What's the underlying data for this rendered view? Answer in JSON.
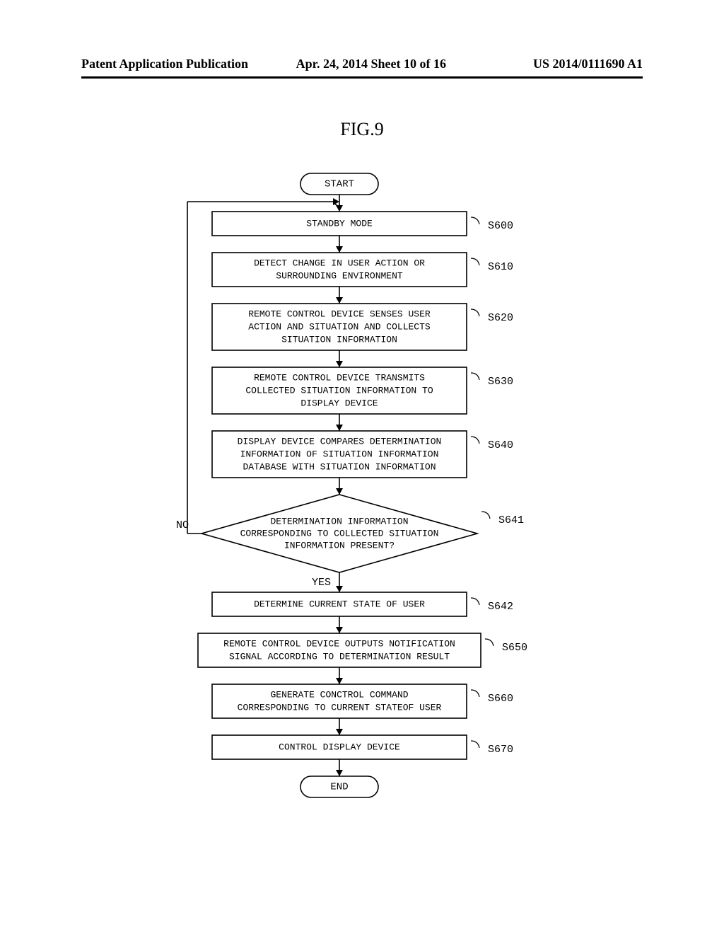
{
  "type": "flowchart",
  "background_color": "#ffffff",
  "stroke_color": "#000000",
  "header": {
    "left": "Patent Application Publication",
    "mid": "Apr. 24, 2014  Sheet 10 of 16",
    "right": "US 2014/0111690 A1",
    "fontsize": 18
  },
  "figure_title": "FIG.9",
  "figure_title_fontsize": 26,
  "terminals": {
    "start": "START",
    "end": "END"
  },
  "yes_label": "YES",
  "no_label": "NO",
  "nodes": [
    {
      "id": "S600",
      "label": "S600",
      "text": [
        "STANDBY MODE"
      ]
    },
    {
      "id": "S610",
      "label": "S610",
      "text": [
        "DETECT CHANGE IN USER ACTION OR",
        "SURROUNDING ENVIRONMENT"
      ]
    },
    {
      "id": "S620",
      "label": "S620",
      "text": [
        "REMOTE CONTROL DEVICE SENSES USER",
        "ACTION AND SITUATION AND COLLECTS",
        "SITUATION INFORMATION"
      ]
    },
    {
      "id": "S630",
      "label": "S630",
      "text": [
        "REMOTE CONTROL DEVICE TRANSMITS",
        "COLLECTED SITUATION INFORMATION TO",
        "DISPLAY DEVICE"
      ]
    },
    {
      "id": "S640",
      "label": "S640",
      "text": [
        "DISPLAY DEVICE COMPARES DETERMINATION",
        "INFORMATION OF SITUATION INFORMATION",
        "DATABASE WITH SITUATION INFORMATION"
      ]
    },
    {
      "id": "S641",
      "label": "S641",
      "text": [
        "DETERMINATION INFORMATION",
        "CORRESPONDING TO COLLECTED SITUATION",
        "INFORMATION PRESENT?"
      ],
      "shape": "decision"
    },
    {
      "id": "S642",
      "label": "S642",
      "text": [
        "DETERMINE CURRENT STATE OF USER"
      ]
    },
    {
      "id": "S650",
      "label": "S650",
      "text": [
        "REMOTE CONTROL DEVICE OUTPUTS NOTIFICATION",
        "SIGNAL ACCORDING TO DETERMINATION RESULT"
      ]
    },
    {
      "id": "S660",
      "label": "S660",
      "text": [
        "GENERATE CONCTROL COMMAND",
        "CORRESPONDING TO CURRENT STATEOF USER"
      ]
    },
    {
      "id": "S670",
      "label": "S670",
      "text": [
        "CONTROL DISPLAY DEVICE"
      ]
    }
  ],
  "block_fontsize": 13,
  "label_fontsize": 15,
  "terminal_fontsize": 14,
  "line_width": 1.6
}
